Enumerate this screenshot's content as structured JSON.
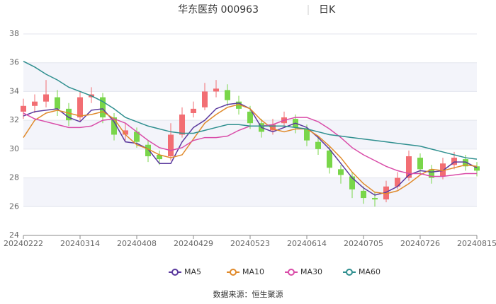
{
  "chart_data": {
    "type": "candlestick",
    "title": "华东医药 000963",
    "period": "日K",
    "source": "数据来源：恒生聚源",
    "categories": [
      "20240222",
      null,
      null,
      null,
      null,
      "20240314",
      null,
      null,
      null,
      null,
      "20240408",
      null,
      null,
      null,
      null,
      "20240429",
      null,
      null,
      null,
      null,
      "20240523",
      null,
      null,
      null,
      null,
      "20240614",
      null,
      null,
      null,
      null,
      "20240705",
      null,
      null,
      null,
      null,
      "20240726",
      null,
      null,
      null,
      null,
      "20240815"
    ],
    "open": [
      32.6,
      33.0,
      33.3,
      33.6,
      32.8,
      32.2,
      33.6,
      33.6,
      32.2,
      31.0,
      31.2,
      30.3,
      29.6,
      29.5,
      31.0,
      32.5,
      32.9,
      34.0,
      34.1,
      33.3,
      32.6,
      31.8,
      31.3,
      31.8,
      32.1,
      31.4,
      30.5,
      29.9,
      28.6,
      28.1,
      27.1,
      26.6,
      26.5,
      27.4,
      28.0,
      29.4,
      28.6,
      28.1,
      28.9,
      29.3,
      28.8
    ],
    "high": [
      33.5,
      33.8,
      34.8,
      34.1,
      33.2,
      34.0,
      34.3,
      33.9,
      32.5,
      31.8,
      31.5,
      30.6,
      29.9,
      31.8,
      32.9,
      33.3,
      34.6,
      34.8,
      34.5,
      33.7,
      33.0,
      32.1,
      32.1,
      32.6,
      32.4,
      31.7,
      30.8,
      30.2,
      28.9,
      28.4,
      27.4,
      27.0,
      27.8,
      28.4,
      29.9,
      29.7,
      28.9,
      29.4,
      29.8,
      29.6,
      29.1
    ],
    "low": [
      32.1,
      32.5,
      32.9,
      32.3,
      31.6,
      31.9,
      33.2,
      31.8,
      30.6,
      30.6,
      30.1,
      29.1,
      28.9,
      29.2,
      30.8,
      32.2,
      32.7,
      33.6,
      33.0,
      32.4,
      31.4,
      30.8,
      31.0,
      31.5,
      31.1,
      30.2,
      29.6,
      28.3,
      27.6,
      26.6,
      26.2,
      26.0,
      26.3,
      27.2,
      27.8,
      28.2,
      27.6,
      27.9,
      28.6,
      28.5,
      28.1
    ],
    "close": [
      33.0,
      33.3,
      33.8,
      32.8,
      32.0,
      33.6,
      33.8,
      32.2,
      31.0,
      31.3,
      30.5,
      29.5,
      29.3,
      31.0,
      32.4,
      32.8,
      34.0,
      34.2,
      33.4,
      32.8,
      31.8,
      31.2,
      31.7,
      32.2,
      31.5,
      30.6,
      30.0,
      28.7,
      28.2,
      27.2,
      26.6,
      26.5,
      27.4,
      28.0,
      29.5,
      28.6,
      28.0,
      29.0,
      29.4,
      28.8,
      28.5
    ],
    "up_color": "#f26e73",
    "down_color": "#79d64a",
    "series": [
      {
        "name": "MA5",
        "color": "#5b3a9e",
        "values": [
          32.3,
          32.6,
          32.7,
          32.8,
          32.2,
          31.9,
          32.7,
          32.8,
          31.9,
          30.5,
          30.4,
          30.0,
          29.0,
          29.0,
          30.5,
          31.5,
          32.0,
          32.8,
          33.1,
          33.2,
          32.8,
          31.5,
          31.2,
          31.5,
          31.8,
          31.5,
          30.8,
          30.0,
          29.0,
          28.0,
          27.3,
          26.8,
          27.0,
          27.4,
          28.2,
          28.5,
          28.4,
          28.5,
          29.1,
          29.1,
          28.7
        ]
      },
      {
        "name": "MA10",
        "color": "#e08a2b",
        "values": [
          30.8,
          32.0,
          32.5,
          32.7,
          32.5,
          32.3,
          32.4,
          32.6,
          32.1,
          31.0,
          30.3,
          30.0,
          29.6,
          29.4,
          29.6,
          30.7,
          31.8,
          32.4,
          32.9,
          33.1,
          32.8,
          32.0,
          31.4,
          31.2,
          31.4,
          31.4,
          30.9,
          30.2,
          29.4,
          28.4,
          27.6,
          27.0,
          26.9,
          27.1,
          27.6,
          28.2,
          28.6,
          28.5,
          28.7,
          28.9,
          28.8
        ]
      },
      {
        "name": "MA30",
        "color": "#d94ca8",
        "values": [
          32.5,
          32.1,
          31.9,
          31.7,
          31.5,
          31.5,
          31.6,
          32.0,
          32.1,
          31.8,
          31.2,
          30.6,
          30.1,
          29.9,
          30.1,
          30.6,
          30.8,
          30.8,
          30.9,
          31.3,
          31.6,
          31.6,
          31.7,
          32.0,
          32.2,
          32.2,
          31.9,
          31.4,
          30.8,
          30.1,
          29.6,
          29.2,
          28.8,
          28.5,
          28.3,
          28.3,
          28.1,
          28.1,
          28.2,
          28.3,
          28.3
        ]
      },
      {
        "name": "MA60",
        "color": "#2f8f8f",
        "values": [
          36.1,
          35.7,
          35.2,
          34.8,
          34.3,
          34.0,
          33.7,
          33.3,
          32.8,
          32.2,
          31.9,
          31.6,
          31.4,
          31.2,
          31.1,
          31.1,
          31.3,
          31.5,
          31.7,
          31.7,
          31.6,
          31.6,
          31.6,
          31.6,
          31.5,
          31.4,
          31.2,
          31.0,
          30.9,
          30.8,
          30.7,
          30.6,
          30.5,
          30.4,
          30.3,
          30.2,
          30.0,
          29.8,
          29.6,
          29.4,
          29.3
        ]
      }
    ],
    "ylim": [
      24,
      38
    ],
    "yticks": [
      24,
      26,
      28,
      30,
      32,
      34,
      36,
      38
    ],
    "grid": true
  }
}
